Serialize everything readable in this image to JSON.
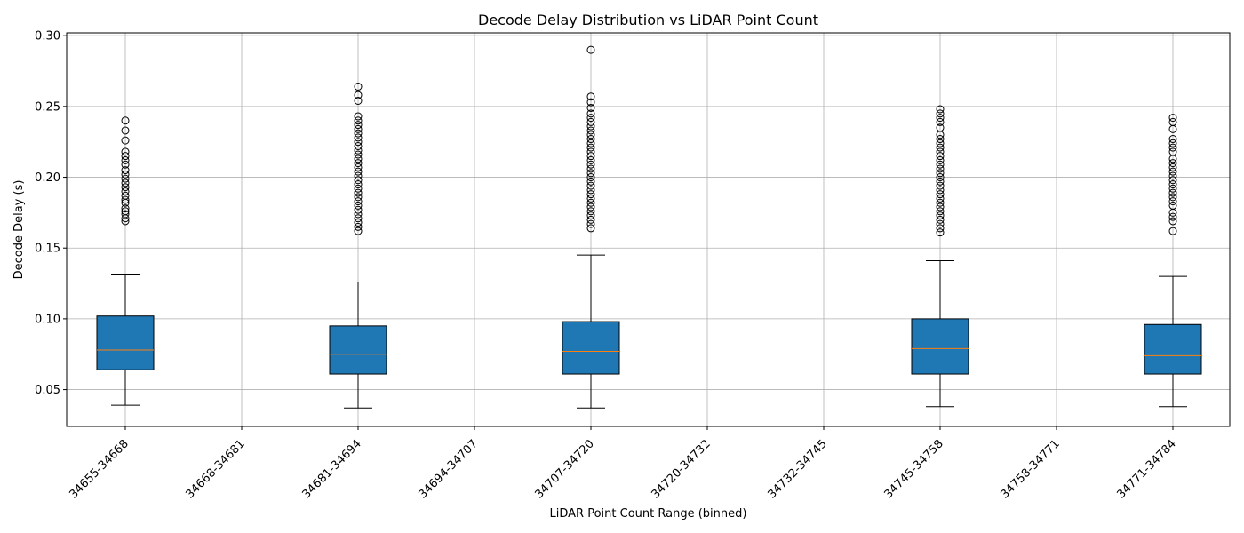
{
  "chart_data": {
    "type": "box",
    "title": "Decode Delay Distribution vs LiDAR Point Count",
    "xlabel": "LiDAR Point Count Range (binned)",
    "ylabel": "Decode Delay (s)",
    "ylim": [
      0.024,
      0.302
    ],
    "yticks": [
      0.05,
      0.1,
      0.15,
      0.2,
      0.25,
      0.3
    ],
    "ytick_labels": [
      "0.05",
      "0.10",
      "0.15",
      "0.20",
      "0.25",
      "0.30"
    ],
    "grid": true,
    "categories": [
      "34655-34668",
      "34668-34681",
      "34681-34694",
      "34694-34707",
      "34707-34720",
      "34720-34732",
      "34732-34745",
      "34745-34758",
      "34758-34771",
      "34771-34784"
    ],
    "boxes": [
      {
        "category": "34655-34668",
        "whisker_low": 0.039,
        "q1": 0.064,
        "median": 0.078,
        "q3": 0.102,
        "whisker_high": 0.131,
        "outliers": [
          0.169,
          0.171,
          0.174,
          0.176,
          0.178,
          0.182,
          0.184,
          0.187,
          0.19,
          0.193,
          0.196,
          0.199,
          0.202,
          0.205,
          0.209,
          0.212,
          0.215,
          0.218,
          0.226,
          0.233,
          0.24
        ]
      },
      {
        "category": "34668-34681",
        "empty": true
      },
      {
        "category": "34681-34694",
        "whisker_low": 0.037,
        "q1": 0.061,
        "median": 0.075,
        "q3": 0.095,
        "whisker_high": 0.126,
        "outliers": [
          0.162,
          0.165,
          0.168,
          0.171,
          0.174,
          0.177,
          0.18,
          0.183,
          0.186,
          0.189,
          0.192,
          0.195,
          0.198,
          0.201,
          0.204,
          0.207,
          0.21,
          0.213,
          0.216,
          0.219,
          0.222,
          0.225,
          0.228,
          0.231,
          0.234,
          0.237,
          0.24,
          0.243,
          0.254,
          0.258,
          0.264
        ]
      },
      {
        "category": "34694-34707",
        "empty": true
      },
      {
        "category": "34707-34720",
        "whisker_low": 0.037,
        "q1": 0.061,
        "median": 0.077,
        "q3": 0.098,
        "whisker_high": 0.145,
        "outliers": [
          0.164,
          0.167,
          0.17,
          0.173,
          0.176,
          0.179,
          0.182,
          0.185,
          0.188,
          0.191,
          0.194,
          0.197,
          0.2,
          0.203,
          0.206,
          0.209,
          0.212,
          0.215,
          0.218,
          0.221,
          0.224,
          0.227,
          0.23,
          0.233,
          0.236,
          0.239,
          0.242,
          0.245,
          0.249,
          0.253,
          0.257,
          0.29
        ]
      },
      {
        "category": "34720-34732",
        "empty": true
      },
      {
        "category": "34732-34745",
        "empty": true
      },
      {
        "category": "34745-34758",
        "whisker_low": 0.038,
        "q1": 0.061,
        "median": 0.079,
        "q3": 0.1,
        "whisker_high": 0.141,
        "outliers": [
          0.161,
          0.164,
          0.167,
          0.17,
          0.173,
          0.176,
          0.179,
          0.182,
          0.185,
          0.188,
          0.191,
          0.194,
          0.197,
          0.2,
          0.203,
          0.206,
          0.209,
          0.212,
          0.215,
          0.218,
          0.221,
          0.224,
          0.227,
          0.23,
          0.235,
          0.239,
          0.242,
          0.245,
          0.248
        ]
      },
      {
        "category": "34758-34771",
        "empty": true
      },
      {
        "category": "34771-34784",
        "whisker_low": 0.038,
        "q1": 0.061,
        "median": 0.074,
        "q3": 0.096,
        "whisker_high": 0.13,
        "outliers": [
          0.162,
          0.169,
          0.172,
          0.175,
          0.18,
          0.183,
          0.186,
          0.189,
          0.192,
          0.195,
          0.198,
          0.201,
          0.204,
          0.207,
          0.21,
          0.213,
          0.218,
          0.221,
          0.224,
          0.227,
          0.234,
          0.239,
          0.242
        ]
      }
    ],
    "colors": {
      "box_fill": "#1f77b4",
      "median": "#ff7f0e",
      "grid": "#b0b0b0",
      "line": "#000000"
    }
  }
}
